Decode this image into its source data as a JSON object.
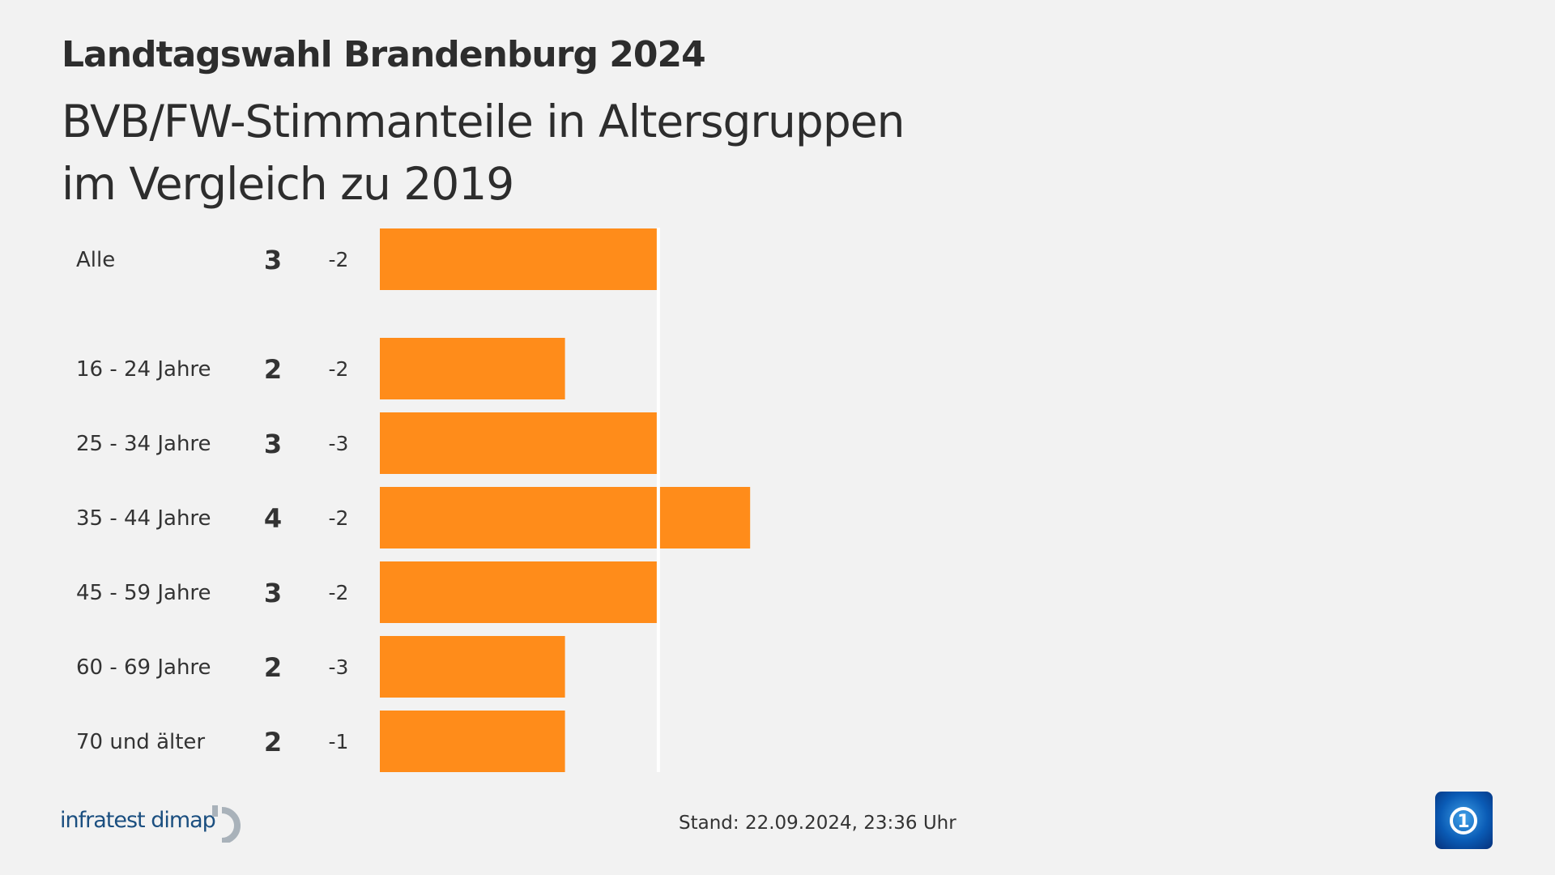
{
  "header": {
    "title": "Landtagswahl Brandenburg 2024",
    "subtitle_lines": [
      "BVB/FW-Stimmanteile in Altersgruppen",
      "im Vergleich zu 2019"
    ]
  },
  "chart_data": {
    "type": "bar",
    "orientation": "horizontal",
    "categories": [
      "Alle",
      "16 - 24 Jahre",
      "25 - 34 Jahre",
      "35 - 44 Jahre",
      "45 - 59 Jahre",
      "60 - 69 Jahre",
      "70 und älter"
    ],
    "values": [
      3,
      2,
      3,
      4,
      3,
      2,
      2
    ],
    "value_labels": [
      "3",
      "2",
      "3",
      "4",
      "3",
      "2",
      "2"
    ],
    "diff_labels": [
      "-2",
      "-2",
      "-3",
      "-2",
      "-2",
      "-3",
      "-1"
    ],
    "reference_line": 3,
    "bar_color": "#ff8c1a",
    "reference_line_color": "#ffffff",
    "xlim": [
      0,
      4
    ]
  },
  "footer": {
    "source": "infratest dimap",
    "stand": "Stand:  22.09.2024, 23:36 Uhr",
    "broadcaster_logo": "ard-tagesschau-logo"
  }
}
